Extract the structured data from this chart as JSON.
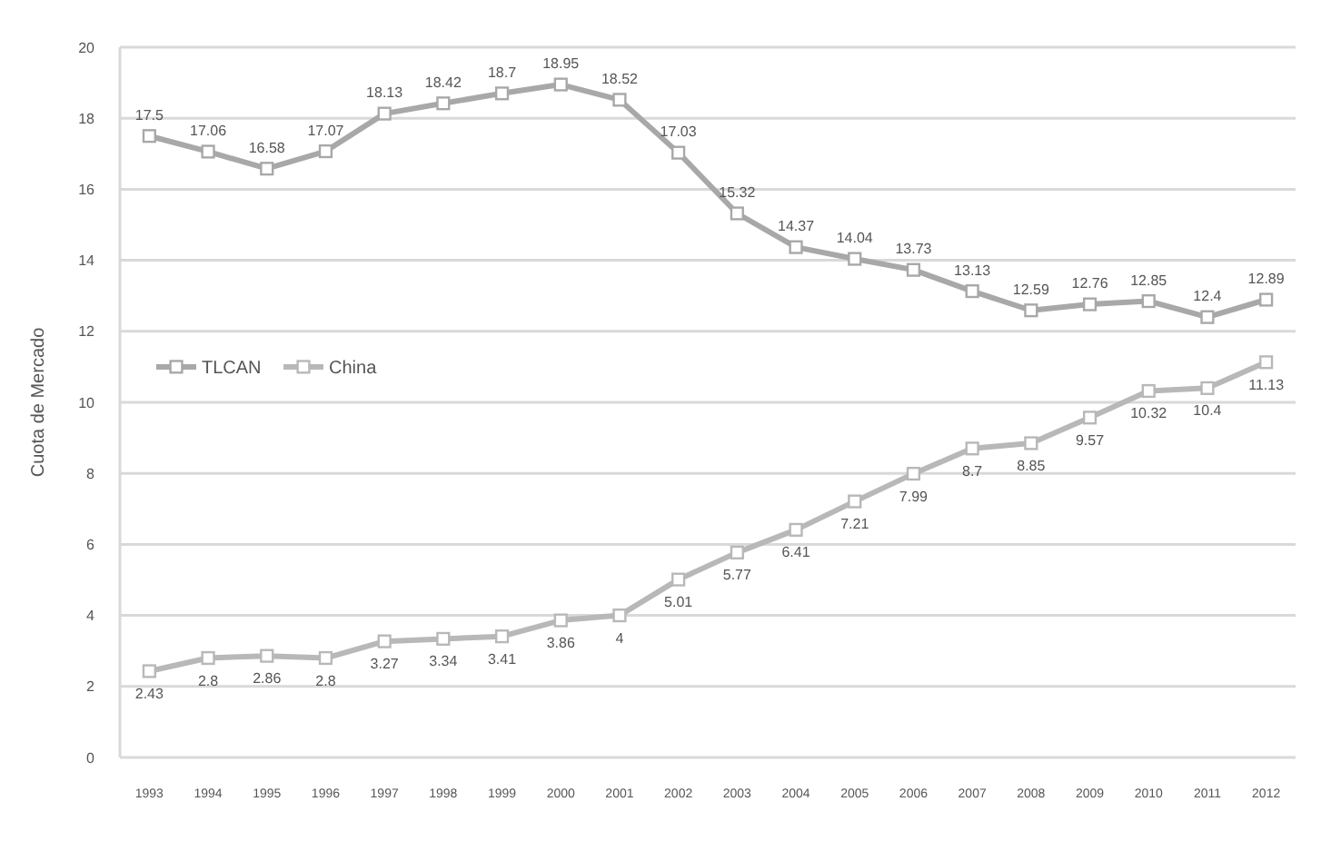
{
  "chart_data": {
    "type": "line",
    "ylabel": "Cuota de Mercado",
    "categories": [
      "1993",
      "1994",
      "1995",
      "1996",
      "1997",
      "1998",
      "1999",
      "2000",
      "2001",
      "2002",
      "2003",
      "2004",
      "2005",
      "2006",
      "2007",
      "2008",
      "2009",
      "2010",
      "2011",
      "2012"
    ],
    "series": [
      {
        "name": "TLCAN",
        "color": "#a8a8a8",
        "values": [
          17.5,
          17.06,
          16.58,
          17.07,
          18.13,
          18.42,
          18.7,
          18.95,
          18.52,
          17.03,
          15.32,
          14.37,
          14.04,
          13.73,
          13.13,
          12.59,
          12.76,
          12.85,
          12.4,
          12.89
        ]
      },
      {
        "name": "China",
        "color": "#b8b8b8",
        "values": [
          2.43,
          2.8,
          2.86,
          2.8,
          3.27,
          3.34,
          3.41,
          3.86,
          4,
          5.01,
          5.77,
          6.41,
          7.21,
          7.99,
          8.7,
          8.85,
          9.57,
          10.32,
          10.4,
          11.13
        ]
      }
    ],
    "ylim": [
      0,
      20
    ],
    "yticks": [
      0,
      2,
      4,
      6,
      8,
      10,
      12,
      14,
      16,
      18,
      20
    ],
    "grid": "y",
    "legend": "left",
    "marker": "square",
    "line_style": "solid",
    "data_labels": true
  }
}
